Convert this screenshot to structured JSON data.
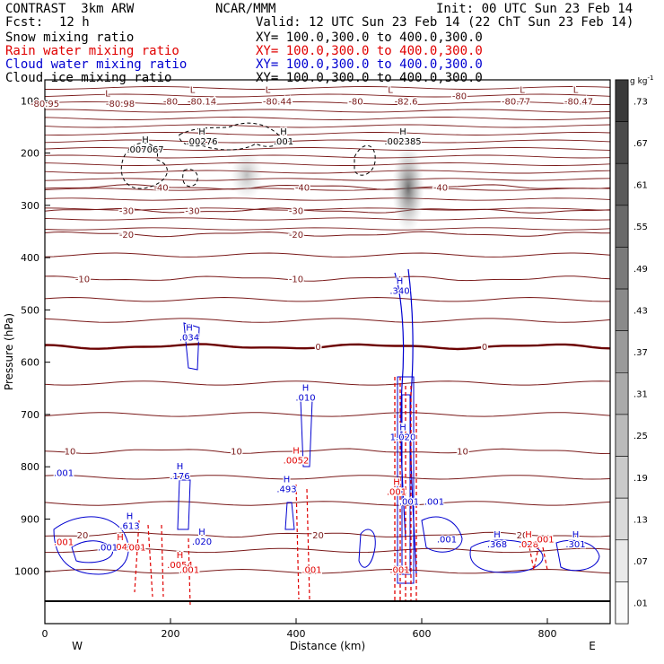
{
  "header": {
    "model": "CONTRAST  3km ARW",
    "org": "NCAR/MMM",
    "init": "Init: 00 UTC Sun 23 Feb 14",
    "fcst_label": "Fcst:",
    "fcst_value": "12 h",
    "valid": "Valid: 12 UTC Sun 23 Feb 14 (22 ChT Sun 23 Feb 14)",
    "fields": [
      {
        "name": "Snow mixing ratio",
        "xy": "XY= 100.0,300.0 to 400.0,300.0",
        "color": "#000000"
      },
      {
        "name": "Rain water mixing ratio",
        "xy": "XY= 100.0,300.0 to 400.0,300.0",
        "color": "#e00000"
      },
      {
        "name": "Cloud water mixing ratio",
        "xy": "XY= 100.0,300.0 to 400.0,300.0",
        "color": "#0000d0"
      },
      {
        "name": "Cloud ice mixing ratio",
        "xy": "XY= 100.0,300.0 to 400.0,300.0",
        "color": "#000000"
      }
    ]
  },
  "colors": {
    "temperature": "#7a1a1a",
    "zero_isotherm": "#6b0000",
    "rain": "#e00000",
    "cloud_water": "#0000d0",
    "snow": "#000000"
  },
  "chart_data": {
    "type": "contour",
    "xlabel": "Distance (km)",
    "ylabel": "Pressure (hPa)",
    "x_range": [
      0,
      900
    ],
    "y_range": [
      1100,
      60
    ],
    "x_ticks": [
      "0",
      "200",
      "400",
      "600",
      "800"
    ],
    "y_ticks": [
      "100",
      "200",
      "300",
      "400",
      "500",
      "600",
      "700",
      "800",
      "900",
      "1000"
    ],
    "x_endpoints": {
      "left": "W",
      "right": "E"
    },
    "colorbar": {
      "unit": "g kg",
      "unit_exp": "-1",
      "levels": [
        ".73",
        ".67",
        ".61",
        ".55",
        ".49",
        ".43",
        ".37",
        ".31",
        ".25",
        ".19",
        ".13",
        ".07",
        ".01"
      ]
    },
    "temperature_isotherms": [
      {
        "label": "-40",
        "p": 265
      },
      {
        "label": "-30",
        "p": 310
      },
      {
        "label": "-20",
        "p": 355
      },
      {
        "label": "-10",
        "p": 440
      },
      {
        "label": "0",
        "p": 570
      },
      {
        "label": "10",
        "p": 770
      },
      {
        "label": "20",
        "p": 930
      }
    ],
    "temperature_labels": [
      {
        "text": "-80.95",
        "x": 0,
        "p": 105
      },
      {
        "text": "-80.98",
        "x": 120,
        "p": 105
      },
      {
        "text": "-80",
        "x": 200,
        "p": 100
      },
      {
        "text": "-80.14",
        "x": 250,
        "p": 100
      },
      {
        "text": "-80.44",
        "x": 370,
        "p": 100
      },
      {
        "text": "-80",
        "x": 495,
        "p": 100
      },
      {
        "text": "-82.6",
        "x": 575,
        "p": 100
      },
      {
        "text": "-80",
        "x": 660,
        "p": 90
      },
      {
        "text": "-80.77",
        "x": 750,
        "p": 100
      },
      {
        "text": "-80.47",
        "x": 850,
        "p": 100
      },
      {
        "text": "-40",
        "x": 185,
        "p": 265
      },
      {
        "text": "-40",
        "x": 410,
        "p": 265
      },
      {
        "text": "-40",
        "x": 630,
        "p": 265
      },
      {
        "text": "-30",
        "x": 130,
        "p": 310
      },
      {
        "text": "-30",
        "x": 235,
        "p": 310
      },
      {
        "text": "-30",
        "x": 400,
        "p": 310
      },
      {
        "text": "-20",
        "x": 130,
        "p": 355
      },
      {
        "text": "-20",
        "x": 400,
        "p": 355
      },
      {
        "text": "-10",
        "x": 60,
        "p": 440
      },
      {
        "text": "-10",
        "x": 400,
        "p": 440
      },
      {
        "text": "0",
        "x": 435,
        "p": 570
      },
      {
        "text": "0",
        "x": 700,
        "p": 570
      },
      {
        "text": "10",
        "x": 40,
        "p": 770
      },
      {
        "text": "10",
        "x": 305,
        "p": 770
      },
      {
        "text": "10",
        "x": 665,
        "p": 770
      },
      {
        "text": "20",
        "x": 60,
        "p": 930
      },
      {
        "text": "20",
        "x": 435,
        "p": 930
      },
      {
        "text": "20",
        "x": 760,
        "p": 930
      }
    ],
    "extrema": [
      {
        "type": "L",
        "x": 100,
        "p": 92,
        "color": "#7a1a1a"
      },
      {
        "type": "L",
        "x": 235,
        "p": 85,
        "color": "#7a1a1a"
      },
      {
        "type": "L",
        "x": 355,
        "p": 85,
        "color": "#7a1a1a"
      },
      {
        "type": "L",
        "x": 550,
        "p": 85,
        "color": "#7a1a1a"
      },
      {
        "type": "L",
        "x": 760,
        "p": 85,
        "color": "#7a1a1a"
      },
      {
        "type": "L",
        "x": 845,
        "p": 85,
        "color": "#7a1a1a"
      },
      {
        "type": "H",
        "x": 160,
        "p": 180,
        "value": ".007067",
        "color": "#000000"
      },
      {
        "type": "H",
        "x": 250,
        "p": 165,
        "value": ".00276",
        "color": "#000000"
      },
      {
        "type": "H",
        "x": 380,
        "p": 165,
        "value": ".001",
        "color": "#000000"
      },
      {
        "type": "H",
        "x": 570,
        "p": 165,
        "value": ".002385",
        "color": "#000000"
      },
      {
        "type": "H",
        "x": 565,
        "p": 450,
        "value": ".340",
        "color": "#0000d0"
      },
      {
        "type": "H",
        "x": 230,
        "p": 540,
        "value": ".034",
        "color": "#0000d0"
      },
      {
        "type": "H",
        "x": 415,
        "p": 655,
        "value": ".010",
        "color": "#0000d0"
      },
      {
        "type": "H",
        "x": 570,
        "p": 730,
        "value": "1.020",
        "color": "#0000d0"
      },
      {
        "type": "H",
        "x": 400,
        "p": 775,
        "value": ".0052",
        "color": "#e00000"
      },
      {
        "type": "H",
        "x": 215,
        "p": 805,
        "value": ".176",
        "color": "#0000d0"
      },
      {
        "type": "H",
        "x": 385,
        "p": 830,
        "value": ".493",
        "color": "#0000d0"
      },
      {
        "type": "H",
        "x": 560,
        "p": 835,
        "value": ".001",
        "color": "#e00000"
      },
      {
        "type": "H",
        "x": 135,
        "p": 900,
        "value": ".613",
        "color": "#0000d0"
      },
      {
        "type": "H",
        "x": 120,
        "p": 940,
        "value": ".0047",
        "color": "#e00000"
      },
      {
        "type": "H",
        "x": 250,
        "p": 930,
        "value": ".020",
        "color": "#0000d0"
      },
      {
        "type": "H",
        "x": 215,
        "p": 975,
        "value": ".0054",
        "color": "#e00000"
      },
      {
        "type": "H",
        "x": 720,
        "p": 935,
        "value": ".368",
        "color": "#0000d0"
      },
      {
        "type": "H",
        "x": 770,
        "p": 935,
        "value": ".028",
        "color": "#e00000"
      },
      {
        "type": "H",
        "x": 845,
        "p": 935,
        "value": ".301",
        "color": "#0000d0"
      }
    ],
    "isolated_labels": [
      {
        "text": ".001",
        "x": 30,
        "p": 818,
        "color": "#0000d0"
      },
      {
        "text": ".001",
        "x": 580,
        "p": 873,
        "color": "#0000d0"
      },
      {
        "text": ".001",
        "x": 620,
        "p": 873,
        "color": "#0000d0"
      },
      {
        "text": ".001",
        "x": 100,
        "p": 960,
        "color": "#0000d0"
      },
      {
        "text": ".001",
        "x": 145,
        "p": 960,
        "color": "#e00000"
      },
      {
        "text": ".001",
        "x": 640,
        "p": 945,
        "color": "#0000d0"
      },
      {
        "text": ".001",
        "x": 230,
        "p": 1003,
        "color": "#e00000"
      },
      {
        "text": ".001",
        "x": 425,
        "p": 1003,
        "color": "#e00000"
      },
      {
        "text": ".001",
        "x": 565,
        "p": 1003,
        "color": "#e00000"
      },
      {
        "text": ".001",
        "x": 30,
        "p": 950,
        "color": "#e00000"
      },
      {
        "text": ".001",
        "x": 795,
        "p": 945,
        "color": "#e00000"
      }
    ]
  }
}
